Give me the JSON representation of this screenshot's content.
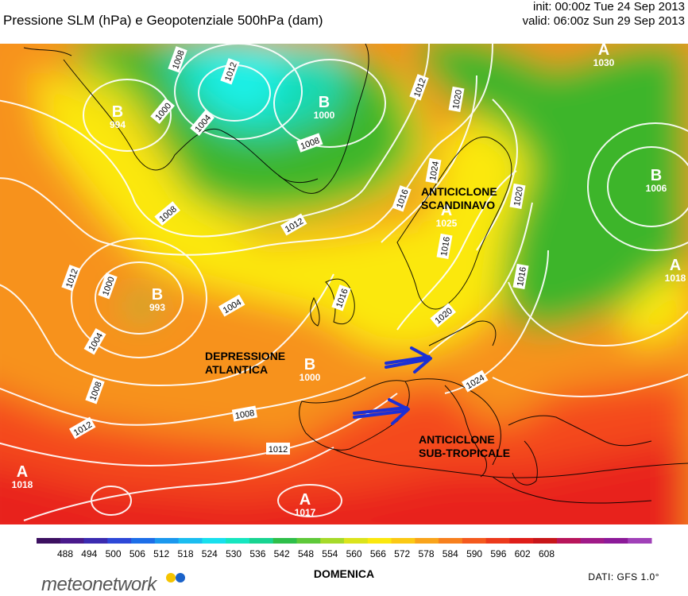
{
  "header": {
    "title": "Pressione SLM (hPa) e Geopotenziale 500hPa (dam)",
    "init": "init: 00:00z Tue 24 Sep 2013",
    "valid": "valid: 06:00z Sun 29 Sep 2013"
  },
  "colors": {
    "deep_red": "#e8221c",
    "red": "#f44a1c",
    "orange": "#f7921e",
    "yellow": "#fbe80e",
    "yellow_green": "#cde31a",
    "green": "#3db52b",
    "light_green": "#62c640",
    "teal": "#19d9b2",
    "cyan": "#1cf0e7",
    "contour": "#ffffff",
    "arrow": "#1b2fd6",
    "coast": "#000000"
  },
  "pressure_centers": [
    {
      "letter": "B",
      "value": "994"
    },
    {
      "letter": "B",
      "value": "1000"
    },
    {
      "letter": "B",
      "value": "993"
    },
    {
      "letter": "B",
      "value": "1000"
    },
    {
      "letter": "B",
      "value": "1006"
    },
    {
      "letter": "A",
      "value": "1030"
    },
    {
      "letter": "A",
      "value": "1025"
    },
    {
      "letter": "A",
      "value": "1018"
    },
    {
      "letter": "A",
      "value": "1017"
    },
    {
      "letter": "A",
      "value": "1018"
    }
  ],
  "isobar_labels": [
    "1008",
    "1012",
    "1000",
    "1004",
    "1008",
    "1012",
    "1020",
    "1024",
    "1020",
    "1016",
    "1012",
    "1008",
    "1000",
    "1012",
    "1004",
    "1016",
    "1004",
    "1008",
    "1008",
    "1012",
    "1012",
    "1016",
    "1020",
    "1024",
    "1016"
  ],
  "annotations": {
    "scandinavian_high": "ANTICICLONE\nSCANDINAVO",
    "atlantic_low": "DEPRESSIONE\nATLANTICA",
    "subtropical_high": "ANTICICLONE\nSUB-TROPICALE"
  },
  "colorbar": {
    "ticks": [
      "488",
      "494",
      "500",
      "506",
      "512",
      "518",
      "524",
      "530",
      "536",
      "542",
      "548",
      "554",
      "560",
      "566",
      "572",
      "578",
      "584",
      "590",
      "596",
      "602",
      "608"
    ],
    "colors": [
      "#3c1060",
      "#4a1a8c",
      "#3b2bb0",
      "#2d48d8",
      "#1d6ee8",
      "#1b98ee",
      "#1bbdf0",
      "#18e0ee",
      "#16e6c0",
      "#19d491",
      "#2fbf4a",
      "#5fc93a",
      "#a6da2a",
      "#dbe41c",
      "#fbe80e",
      "#fbc914",
      "#f9a41b",
      "#f7801e",
      "#f45a1e",
      "#ec3a1c",
      "#df1e1a",
      "#c8161a",
      "#b8155a",
      "#a01a88",
      "#8c1a99",
      "#a041b8"
    ]
  },
  "footer": {
    "day": "DOMENICA",
    "source": "DATI: GFS 1.0°",
    "logo": "meteonetwork",
    "logo_dot_colors": [
      "#f5c400",
      "#1a62c9"
    ]
  }
}
